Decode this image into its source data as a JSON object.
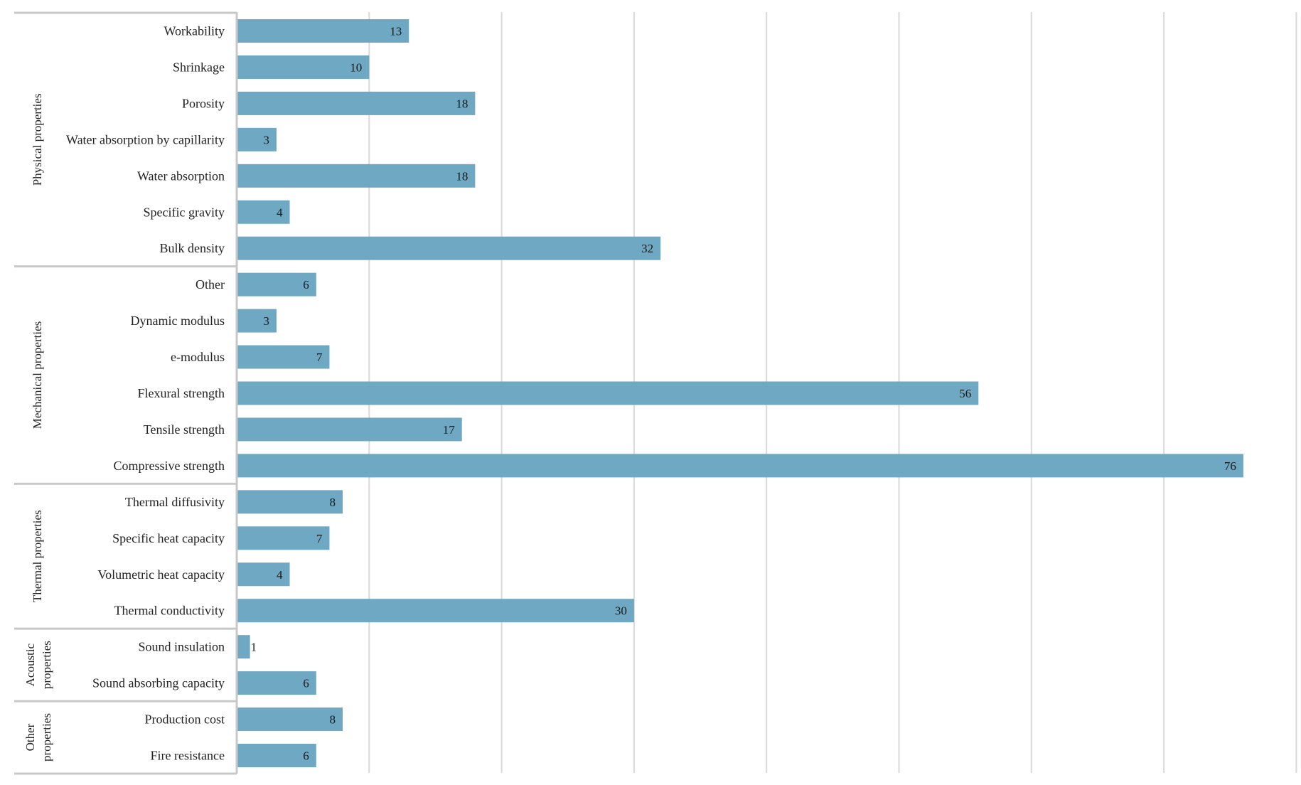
{
  "chart_data": {
    "type": "bar",
    "orientation": "horizontal",
    "title": "",
    "xlabel": "",
    "ylabel": "",
    "xlim": [
      0,
      80
    ],
    "grid": true,
    "bar_color": "#6ba6c1",
    "axis_color": "#c8c8c8",
    "groups": [
      {
        "label": "Physical properties",
        "items": [
          {
            "category": "Workability",
            "value": 13
          },
          {
            "category": "Shrinkage",
            "value": 10
          },
          {
            "category": "Porosity",
            "value": 18
          },
          {
            "category": "Water absorption by capillarity",
            "value": 3
          },
          {
            "category": "Water absorption",
            "value": 18
          },
          {
            "category": "Specific gravity",
            "value": 4
          },
          {
            "category": "Bulk density",
            "value": 32
          }
        ]
      },
      {
        "label": "Mechanical properties",
        "items": [
          {
            "category": "Other",
            "value": 6
          },
          {
            "category": "Dynamic modulus",
            "value": 3
          },
          {
            "category": "e-modulus",
            "value": 7
          },
          {
            "category": "Flexural strength",
            "value": 56
          },
          {
            "category": "Tensile strength",
            "value": 17
          },
          {
            "category": "Compressive strength",
            "value": 76
          }
        ]
      },
      {
        "label": "Thermal properties",
        "items": [
          {
            "category": "Thermal diffusivity",
            "value": 8
          },
          {
            "category": "Specific heat capacity",
            "value": 7
          },
          {
            "category": "Volumetric heat capacity",
            "value": 4
          },
          {
            "category": "Thermal conductivity",
            "value": 30
          }
        ]
      },
      {
        "label": "Acoustic properties",
        "items": [
          {
            "category": "Sound insulation",
            "value": 1
          },
          {
            "category": "Sound absorbing capacity",
            "value": 6
          }
        ]
      },
      {
        "label": "Other properties",
        "items": [
          {
            "category": "Production cost",
            "value": 8
          },
          {
            "category": "Fire resistance",
            "value": 6
          }
        ]
      }
    ]
  }
}
